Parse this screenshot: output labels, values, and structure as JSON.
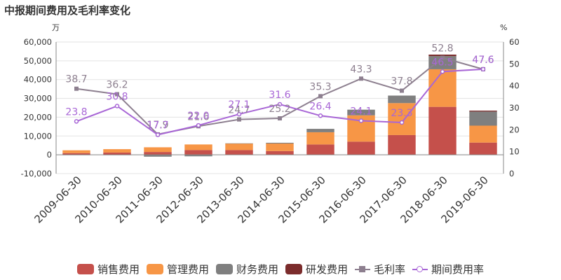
{
  "title": "中报期间费用及毛利率变化",
  "chart_data": {
    "type": "bar+line",
    "categories": [
      "2009-06-30",
      "2010-06-30",
      "2011-06-30",
      "2012-06-30",
      "2013-06-30",
      "2014-06-30",
      "2015-06-30",
      "2016-06-30",
      "2017-06-30",
      "2018-06-30",
      "2019-06-30"
    ],
    "left_axis": {
      "unit": "万",
      "min": -10000,
      "max": 60000,
      "step": 10000,
      "ticks": [
        "-10,000",
        "0",
        "10,000",
        "20,000",
        "30,000",
        "40,000",
        "50,000",
        "60,000"
      ]
    },
    "right_axis": {
      "unit": "%",
      "min": 0,
      "max": 60,
      "step": 10,
      "ticks": [
        "0",
        "10",
        "20",
        "30",
        "40",
        "50",
        "60"
      ]
    },
    "bar_series": [
      {
        "name": "销售费用",
        "color": "#c5504b",
        "values": [
          900,
          1200,
          1500,
          2500,
          2500,
          2000,
          5500,
          7000,
          10500,
          25500,
          6500
        ]
      },
      {
        "name": "管理费用",
        "color": "#f79646",
        "values": [
          1500,
          1800,
          2500,
          3000,
          3500,
          4000,
          6500,
          14000,
          17000,
          20000,
          9000
        ]
      },
      {
        "name": "财务费用",
        "color": "#7f7f7f",
        "values": [
          -100,
          -100,
          -1000,
          -800,
          100,
          400,
          1800,
          3000,
          4000,
          7000,
          7500
        ]
      },
      {
        "name": "研发费用",
        "color": "#7b2c2c",
        "values": [
          0,
          0,
          0,
          0,
          0,
          0,
          0,
          0,
          0,
          800,
          500
        ]
      }
    ],
    "line_series": [
      {
        "name": "毛利率",
        "color": "#8d7f8f",
        "marker": "square",
        "values": [
          38.7,
          36.2,
          17.9,
          21.6,
          24.7,
          25.2,
          35.3,
          43.3,
          37.8,
          52.8,
          47.6
        ],
        "labels": [
          "38.7",
          "36.2",
          "17.9",
          "21.6",
          "24.7",
          "25.2",
          "35.3",
          "43.3",
          "37.8",
          "52.8",
          "47.6"
        ]
      },
      {
        "name": "期间费用率",
        "color": "#a866d6",
        "marker": "circle",
        "values": [
          23.8,
          30.8,
          17.7,
          22.0,
          27.1,
          31.6,
          26.4,
          24.1,
          23.3,
          46.5,
          47.6
        ],
        "labels": [
          "23.8",
          "30.8",
          "17.7",
          "22.0",
          "27.1",
          "31.6",
          "26.4",
          "24.1",
          "23.3",
          "46.5",
          "47.6"
        ]
      }
    ],
    "grid": true,
    "legend_position": "bottom"
  }
}
